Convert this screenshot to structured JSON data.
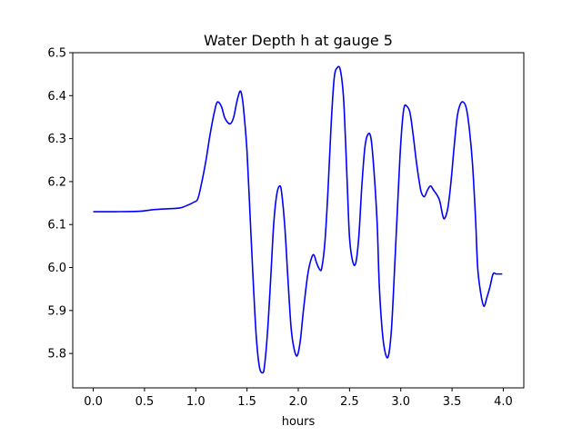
{
  "chart_data": {
    "type": "line",
    "title": "Water Depth h at gauge 5",
    "xlabel": "hours",
    "ylabel": "",
    "xlim": [
      -0.2,
      4.2
    ],
    "ylim": [
      5.72,
      6.5
    ],
    "xticks": [
      0.0,
      0.5,
      1.0,
      1.5,
      2.0,
      2.5,
      3.0,
      3.5,
      4.0
    ],
    "xtick_labels": [
      "0.0",
      "0.5",
      "1.0",
      "1.5",
      "2.0",
      "2.5",
      "3.0",
      "3.5",
      "4.0"
    ],
    "yticks": [
      5.8,
      5.9,
      6.0,
      6.1,
      6.2,
      6.3,
      6.4,
      6.5
    ],
    "ytick_labels": [
      "5.8",
      "5.9",
      "6.0",
      "6.1",
      "6.2",
      "6.3",
      "6.4",
      "6.5"
    ],
    "grid": false,
    "series": [
      {
        "name": "",
        "color": "#0000ff",
        "x": [
          0.0,
          0.2,
          0.45,
          0.6,
          0.75,
          0.85,
          0.92,
          0.98,
          1.02,
          1.06,
          1.1,
          1.14,
          1.18,
          1.21,
          1.25,
          1.28,
          1.31,
          1.34,
          1.37,
          1.4,
          1.43,
          1.45,
          1.47,
          1.5,
          1.53,
          1.56,
          1.59,
          1.62,
          1.65,
          1.67,
          1.7,
          1.73,
          1.76,
          1.79,
          1.82,
          1.84,
          1.87,
          1.9,
          1.93,
          1.96,
          1.99,
          2.02,
          2.05,
          2.09,
          2.12,
          2.15,
          2.18,
          2.21,
          2.23,
          2.26,
          2.29,
          2.32,
          2.35,
          2.38,
          2.41,
          2.44,
          2.46,
          2.48,
          2.5,
          2.53,
          2.56,
          2.59,
          2.62,
          2.65,
          2.68,
          2.71,
          2.74,
          2.77,
          2.79,
          2.82,
          2.85,
          2.88,
          2.91,
          2.94,
          2.97,
          3.0,
          3.03,
          3.06,
          3.09,
          3.12,
          3.15,
          3.18,
          3.2,
          3.23,
          3.26,
          3.29,
          3.32,
          3.35,
          3.38,
          3.41,
          3.43,
          3.46,
          3.49,
          3.52,
          3.55,
          3.58,
          3.61,
          3.64,
          3.67,
          3.7,
          3.73,
          3.75,
          3.78,
          3.81,
          3.84,
          3.87,
          3.9,
          3.93,
          3.96,
          3.99
        ],
        "y": [
          6.13,
          6.13,
          6.131,
          6.135,
          6.137,
          6.139,
          6.145,
          6.152,
          6.16,
          6.2,
          6.25,
          6.31,
          6.36,
          6.385,
          6.375,
          6.35,
          6.338,
          6.335,
          6.35,
          6.385,
          6.41,
          6.4,
          6.36,
          6.27,
          6.12,
          5.97,
          5.84,
          5.77,
          5.755,
          5.77,
          5.85,
          5.97,
          6.1,
          6.17,
          6.19,
          6.17,
          6.09,
          5.97,
          5.86,
          5.81,
          5.795,
          5.83,
          5.9,
          5.98,
          6.015,
          6.03,
          6.01,
          5.995,
          6.0,
          6.06,
          6.18,
          6.33,
          6.44,
          6.465,
          6.46,
          6.4,
          6.3,
          6.18,
          6.07,
          6.015,
          6.01,
          6.07,
          6.19,
          6.28,
          6.31,
          6.3,
          6.22,
          6.1,
          5.96,
          5.85,
          5.8,
          5.795,
          5.86,
          6.0,
          6.15,
          6.29,
          6.37,
          6.375,
          6.36,
          6.31,
          6.25,
          6.2,
          6.175,
          6.165,
          6.18,
          6.19,
          6.18,
          6.17,
          6.155,
          6.12,
          6.115,
          6.14,
          6.2,
          6.28,
          6.35,
          6.38,
          6.385,
          6.37,
          6.32,
          6.24,
          6.11,
          6.0,
          5.94,
          5.91,
          5.93,
          5.955,
          5.985,
          5.985,
          5.985,
          5.985
        ]
      }
    ]
  }
}
